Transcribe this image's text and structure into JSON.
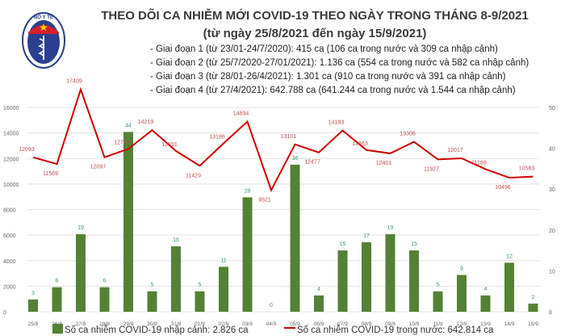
{
  "header": {
    "logo_text": "BỘ Y TẾ",
    "title": "THEO DÕI CA NHIỄM MỚI COVID-19 THEO NGÀY TRONG THÁNG 8-9/2021",
    "subtitle": "(từ ngày 25/8/2021 đến ngày 15/9/2021)",
    "notes": [
      "- Giai đoạn 1 (từ 23/01-24/7/2020): 415 ca (106 ca trong nước và 309 ca nhập cảnh)",
      "- Giai đoạn 2 (từ 25/7/2020-27/01/2021): 1.136 ca (554 ca trong nước và 582 ca nhập cảnh)",
      "- Giai đoạn 3 (từ 28/01-26/4/2021): 1.301 ca (910 ca trong nước và 391 ca nhập cảnh)",
      "- Giai đoạn 4 (từ 27/4/2021): 642.788 ca (641.244 ca trong nước và 1.544 ca nhập cảnh)"
    ]
  },
  "chart_data": {
    "type": "bar+line",
    "categories": [
      "25/8",
      "26/8",
      "27/8",
      "28/8",
      "29/8",
      "30/8",
      "31/8",
      "01/9",
      "02/9",
      "03/9",
      "04/9",
      "05/9",
      "06/9",
      "07/9",
      "08/9",
      "09/8",
      "10/9",
      "11/9",
      "12/9",
      "13/9",
      "14/9",
      "15/9"
    ],
    "series": [
      {
        "name": "Số ca nhiễm COVID-19 nhập cảnh: 2.826 ca",
        "type": "bar",
        "axis": "right",
        "color": "#548235",
        "values": [
          3,
          6,
          19,
          6,
          44,
          5,
          16,
          5,
          11,
          28,
          0,
          36,
          4,
          15,
          17,
          19,
          15,
          5,
          9,
          4,
          12,
          2
        ]
      },
      {
        "name": "Số ca nhiễm COVID-19 trong nước: 642.814 ca",
        "type": "line",
        "axis": "left",
        "color": "#d00000",
        "values": [
          12093,
          11569,
          17409,
          12097,
          12752,
          14219,
          12591,
          11429,
          13186,
          14894,
          9521,
          13101,
          12477,
          14193,
          12663,
          12401,
          13306,
          11927,
          12017,
          11168,
          10496,
          10583
        ]
      }
    ],
    "left_axis": {
      "ylim": [
        0,
        16000
      ],
      "ticks": [
        0,
        2000,
        4000,
        6000,
        8000,
        10000,
        12000,
        14000,
        16000
      ]
    },
    "right_axis": {
      "ylim": [
        0,
        50
      ],
      "ticks": [
        0,
        10,
        20,
        30,
        40,
        50
      ]
    },
    "grid": true,
    "legend": "bottom",
    "label_colors": {
      "bar": "#3a9a6a",
      "line": "#c0504d"
    }
  }
}
